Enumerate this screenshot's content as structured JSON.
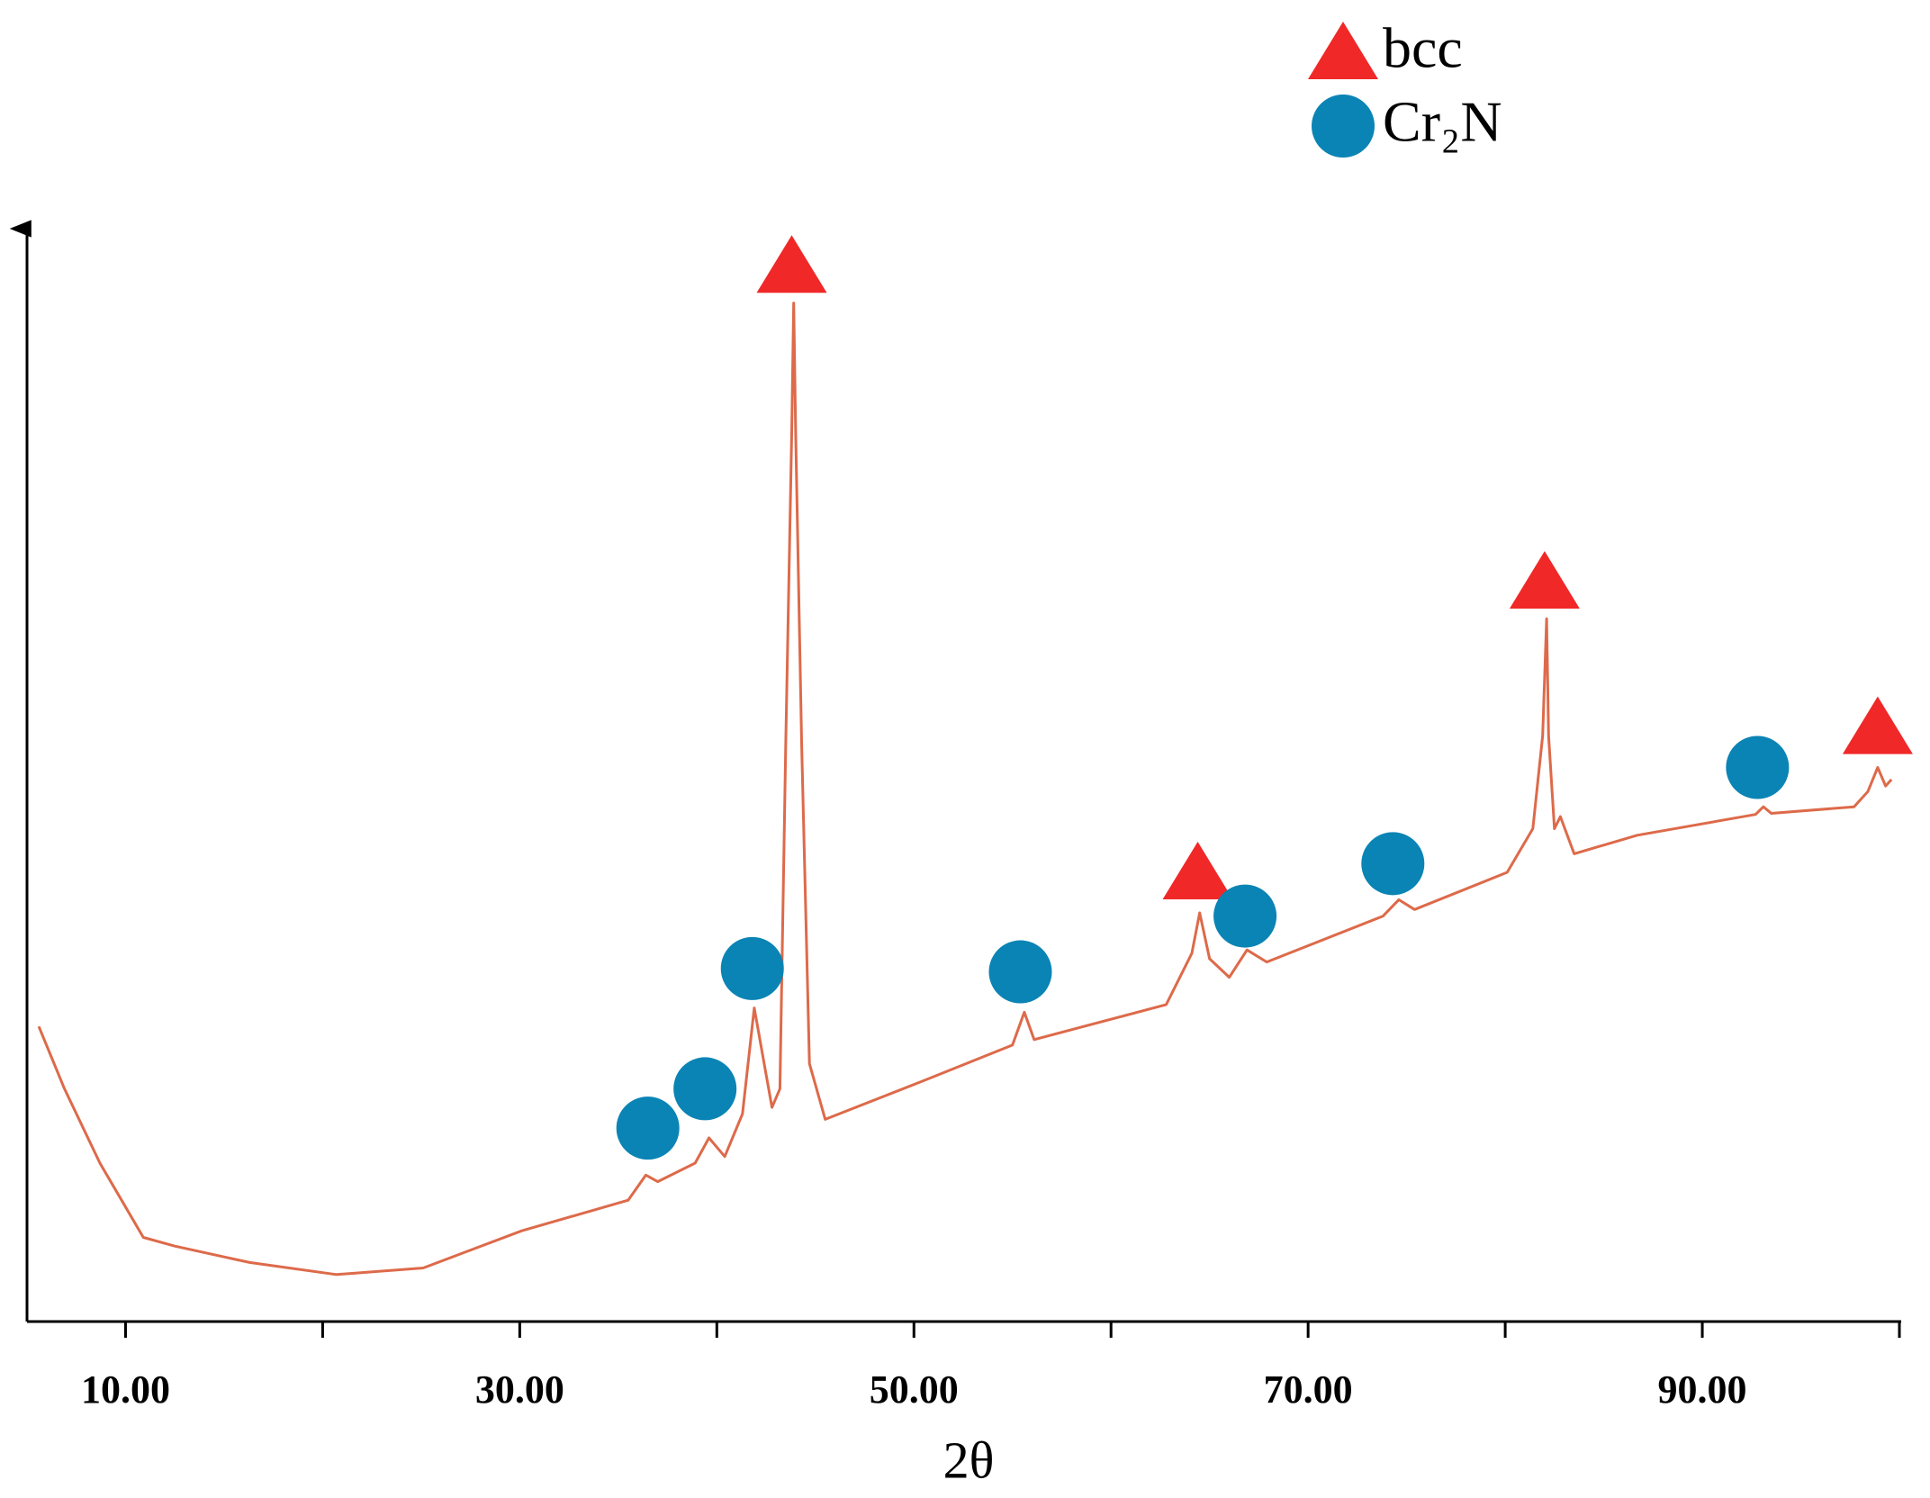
{
  "chart_data": {
    "type": "line",
    "xlabel": "2θ",
    "xlim": [
      5,
      100
    ],
    "ylim": [
      0,
      100
    ],
    "xticks": [
      {
        "value": 10,
        "label": "10.00"
      },
      {
        "value": 30,
        "label": "30.00"
      },
      {
        "value": 50,
        "label": "50.00"
      },
      {
        "value": 70,
        "label": "70.00"
      },
      {
        "value": 90,
        "label": "90.00"
      }
    ],
    "minor_xticks": [
      20,
      40,
      60,
      80,
      100
    ],
    "series": [
      {
        "color": "#dd6a4a",
        "x": [
          5.6,
          6.9,
          8.7,
          10.9,
          12.5,
          16.3,
          20.7,
          25.1,
          30.1,
          35.5,
          36.4,
          37.0,
          38.9,
          39.6,
          40.4,
          41.3,
          41.9,
          42.4,
          42.8,
          43.2,
          43.5,
          43.8,
          43.9,
          44.0,
          44.3,
          44.7,
          45.5,
          50.3,
          55.0,
          55.6,
          56.1,
          62.8,
          64.1,
          64.5,
          65.0,
          66.0,
          66.9,
          67.9,
          73.8,
          74.6,
          75.4,
          80.1,
          81.4,
          81.9,
          82.1,
          82.2,
          82.5,
          82.8,
          83.5,
          86.7,
          92.7,
          93.1,
          93.5,
          97.7,
          98.4,
          98.9,
          99.3,
          99.6
        ],
        "values": [
          27.0,
          21.3,
          14.5,
          7.7,
          6.9,
          5.4,
          4.3,
          4.9,
          8.3,
          11.1,
          13.4,
          12.8,
          14.5,
          16.8,
          15.1,
          19.0,
          28.7,
          23.6,
          19.6,
          21.3,
          53.0,
          81.3,
          93.2,
          81.3,
          53.0,
          23.6,
          18.5,
          21.9,
          25.3,
          28.3,
          25.8,
          29.0,
          33.7,
          37.4,
          33.2,
          31.5,
          34.0,
          32.9,
          37.1,
          38.6,
          37.7,
          41.1,
          45.1,
          53.6,
          64.3,
          53.6,
          45.1,
          46.2,
          42.8,
          44.5,
          46.4,
          47.1,
          46.5,
          47.1,
          48.5,
          50.7,
          49.0,
          49.6
        ]
      }
    ],
    "markers": [
      {
        "name": "bcc",
        "color": "#f02828",
        "shape": "triangle",
        "x": [
          43.8,
          64.4,
          82.0,
          98.9
        ],
        "values": [
          96.6,
          41.1,
          67.7,
          54.4
        ]
      },
      {
        "name": "Cr₂N",
        "color": "#0a84b4",
        "shape": "circle",
        "x": [
          36.5,
          39.4,
          41.8,
          55.4,
          66.8,
          74.3,
          92.8
        ],
        "values": [
          17.7,
          21.3,
          32.3,
          32.0,
          37.1,
          41.9,
          50.7
        ]
      }
    ]
  }
}
